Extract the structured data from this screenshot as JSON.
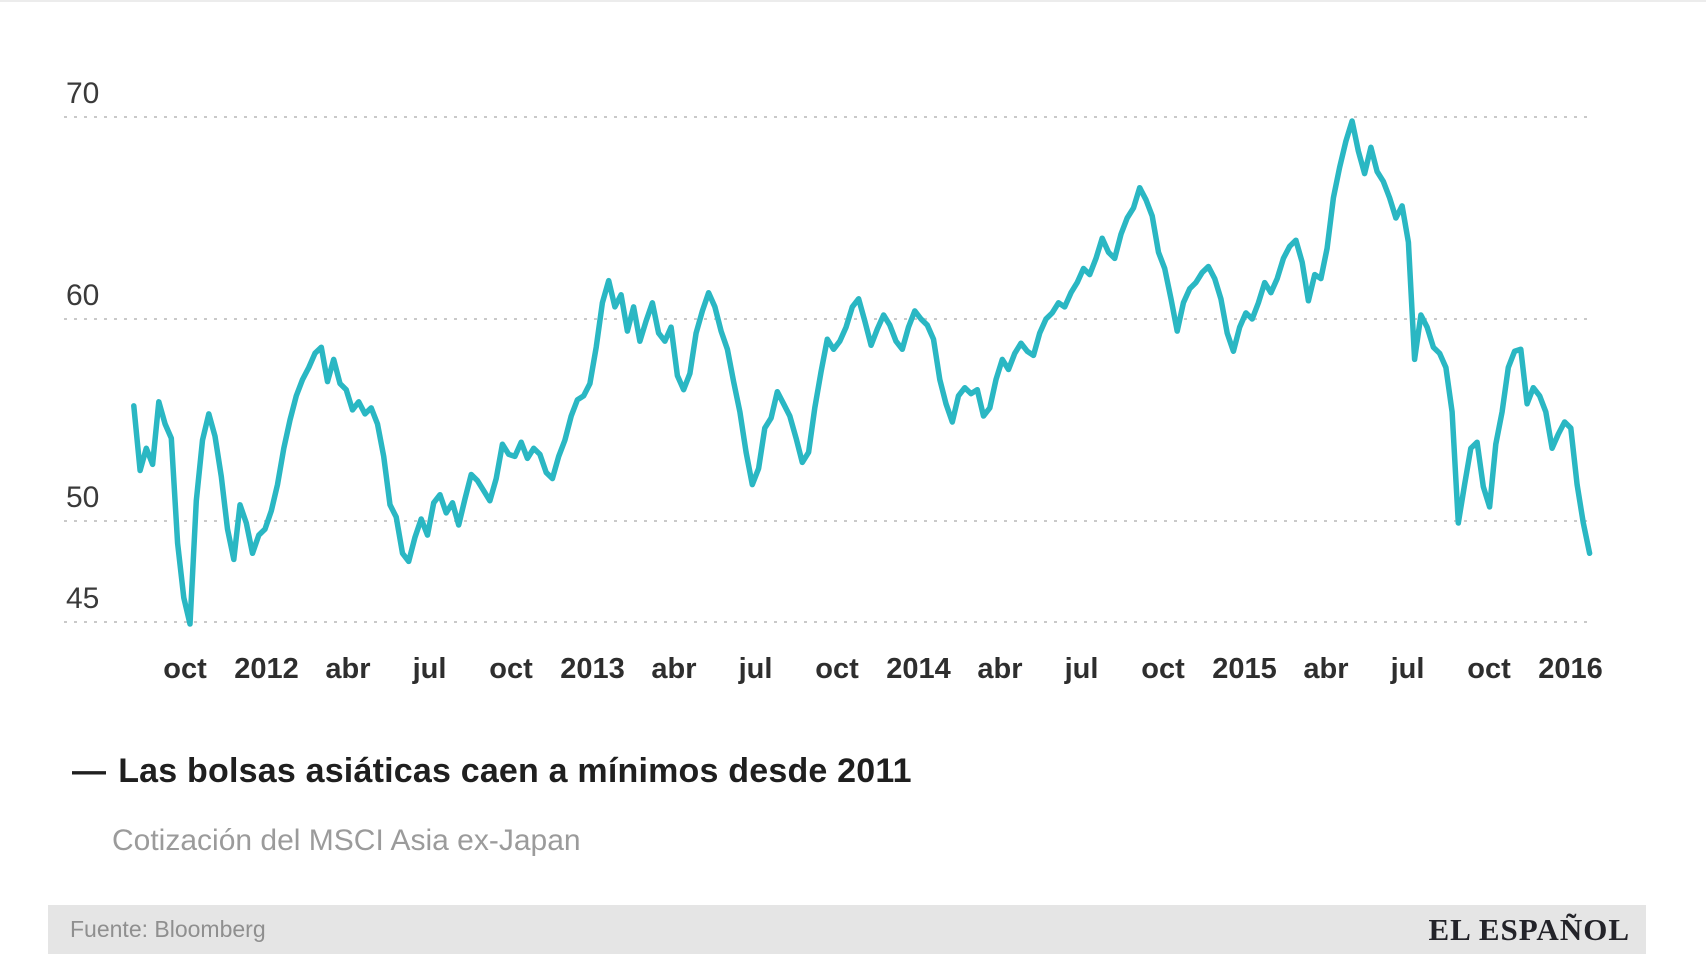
{
  "header": {
    "title_dash": "—",
    "title": "Las bolsas asiáticas caen a mínimos desde 2011",
    "subtitle": "Cotización del MSCI Asia ex-Japan"
  },
  "footer": {
    "source": "Fuente: Bloomberg",
    "brand": "EL ESPAÑOL"
  },
  "colors": {
    "line": "#2ab7c3",
    "grid": "#c9c9c9",
    "footer_band": "#e5e5e5"
  },
  "chart_data": {
    "type": "line",
    "title": "Las bolsas asiáticas caen a mínimos desde 2011",
    "subtitle": "Cotización del MSCI Asia ex-Japan",
    "source": "Fuente: Bloomberg",
    "legend": "none",
    "grid": "horizontal dotted lines at y ticks only",
    "xlabel": "",
    "ylabel": "",
    "ylim": [
      43.5,
      71.5
    ],
    "xlim_years": [
      2011.58,
      2016.08
    ],
    "y_ticks": [
      70,
      60,
      50,
      45
    ],
    "x_ticks": [
      {
        "label": "oct",
        "t": 2011.75
      },
      {
        "label": "2012",
        "t": 2012.0
      },
      {
        "label": "abr",
        "t": 2012.25
      },
      {
        "label": "jul",
        "t": 2012.5
      },
      {
        "label": "oct",
        "t": 2012.75
      },
      {
        "label": "2013",
        "t": 2013.0
      },
      {
        "label": "abr",
        "t": 2013.25
      },
      {
        "label": "jul",
        "t": 2013.5
      },
      {
        "label": "oct",
        "t": 2013.75
      },
      {
        "label": "2014",
        "t": 2014.0
      },
      {
        "label": "abr",
        "t": 2014.25
      },
      {
        "label": "jul",
        "t": 2014.5
      },
      {
        "label": "oct",
        "t": 2014.75
      },
      {
        "label": "2015",
        "t": 2015.0
      },
      {
        "label": "abr",
        "t": 2015.25
      },
      {
        "label": "jul",
        "t": 2015.5
      },
      {
        "label": "oct",
        "t": 2015.75
      },
      {
        "label": "2016",
        "t": 2016.0
      }
    ],
    "series": [
      {
        "name": "MSCI Asia ex-Japan",
        "sampling": "weekly",
        "start_year": 2011.593,
        "step_years": 0.019165,
        "values": [
          55.7,
          52.5,
          53.6,
          52.8,
          55.9,
          54.8,
          54.1,
          48.9,
          46.2,
          44.9,
          51.0,
          54.0,
          55.3,
          54.2,
          52.2,
          49.6,
          48.1,
          50.8,
          49.9,
          48.4,
          49.3,
          49.6,
          50.5,
          51.8,
          53.6,
          55.0,
          56.2,
          57.0,
          57.6,
          58.3,
          58.6,
          56.9,
          58.0,
          56.8,
          56.5,
          55.5,
          55.9,
          55.3,
          55.6,
          54.8,
          53.2,
          50.8,
          50.2,
          48.4,
          48.0,
          49.2,
          50.1,
          49.3,
          50.9,
          51.3,
          50.4,
          50.9,
          49.8,
          51.1,
          52.3,
          52.0,
          51.5,
          51.0,
          52.1,
          53.8,
          53.3,
          53.2,
          53.9,
          53.1,
          53.6,
          53.3,
          52.4,
          52.1,
          53.2,
          54.0,
          55.2,
          56.0,
          56.2,
          56.8,
          58.6,
          60.8,
          61.9,
          60.6,
          61.2,
          59.4,
          60.6,
          58.9,
          59.9,
          60.8,
          59.3,
          58.9,
          59.6,
          57.2,
          56.5,
          57.3,
          59.3,
          60.4,
          61.3,
          60.6,
          59.4,
          58.5,
          56.9,
          55.4,
          53.4,
          51.8,
          52.6,
          54.6,
          55.1,
          56.4,
          55.8,
          55.2,
          54.1,
          52.9,
          53.4,
          55.6,
          57.4,
          59.0,
          58.5,
          58.9,
          59.6,
          60.6,
          61.0,
          59.9,
          58.7,
          59.5,
          60.2,
          59.7,
          58.9,
          58.5,
          59.6,
          60.4,
          60.0,
          59.7,
          59.0,
          57.0,
          55.8,
          54.9,
          56.2,
          56.6,
          56.3,
          56.5,
          55.2,
          55.6,
          57.0,
          58.0,
          57.5,
          58.3,
          58.8,
          58.4,
          58.2,
          59.3,
          60.0,
          60.3,
          60.8,
          60.6,
          61.3,
          61.8,
          62.5,
          62.2,
          63.0,
          64.0,
          63.3,
          63.0,
          64.2,
          65.0,
          65.5,
          66.5,
          65.9,
          65.1,
          63.3,
          62.5,
          61.0,
          59.4,
          60.8,
          61.5,
          61.8,
          62.3,
          62.6,
          62.0,
          61.0,
          59.3,
          58.4,
          59.6,
          60.3,
          60.0,
          60.8,
          61.8,
          61.3,
          62.0,
          63.0,
          63.6,
          63.9,
          62.8,
          60.9,
          62.2,
          62.0,
          63.5,
          66.0,
          67.5,
          68.8,
          69.8,
          68.3,
          67.2,
          68.5,
          67.3,
          66.8,
          66.0,
          65.0,
          65.6,
          63.8,
          58.0,
          60.2,
          59.6,
          58.6,
          58.3,
          57.6,
          55.4,
          49.9,
          51.8,
          53.6,
          53.9,
          51.7,
          50.7,
          53.8,
          55.4,
          57.6,
          58.4,
          58.5,
          55.8,
          56.6,
          56.2,
          55.4,
          53.6,
          54.3,
          54.9,
          54.6,
          51.8,
          49.9,
          48.4
        ]
      }
    ]
  }
}
